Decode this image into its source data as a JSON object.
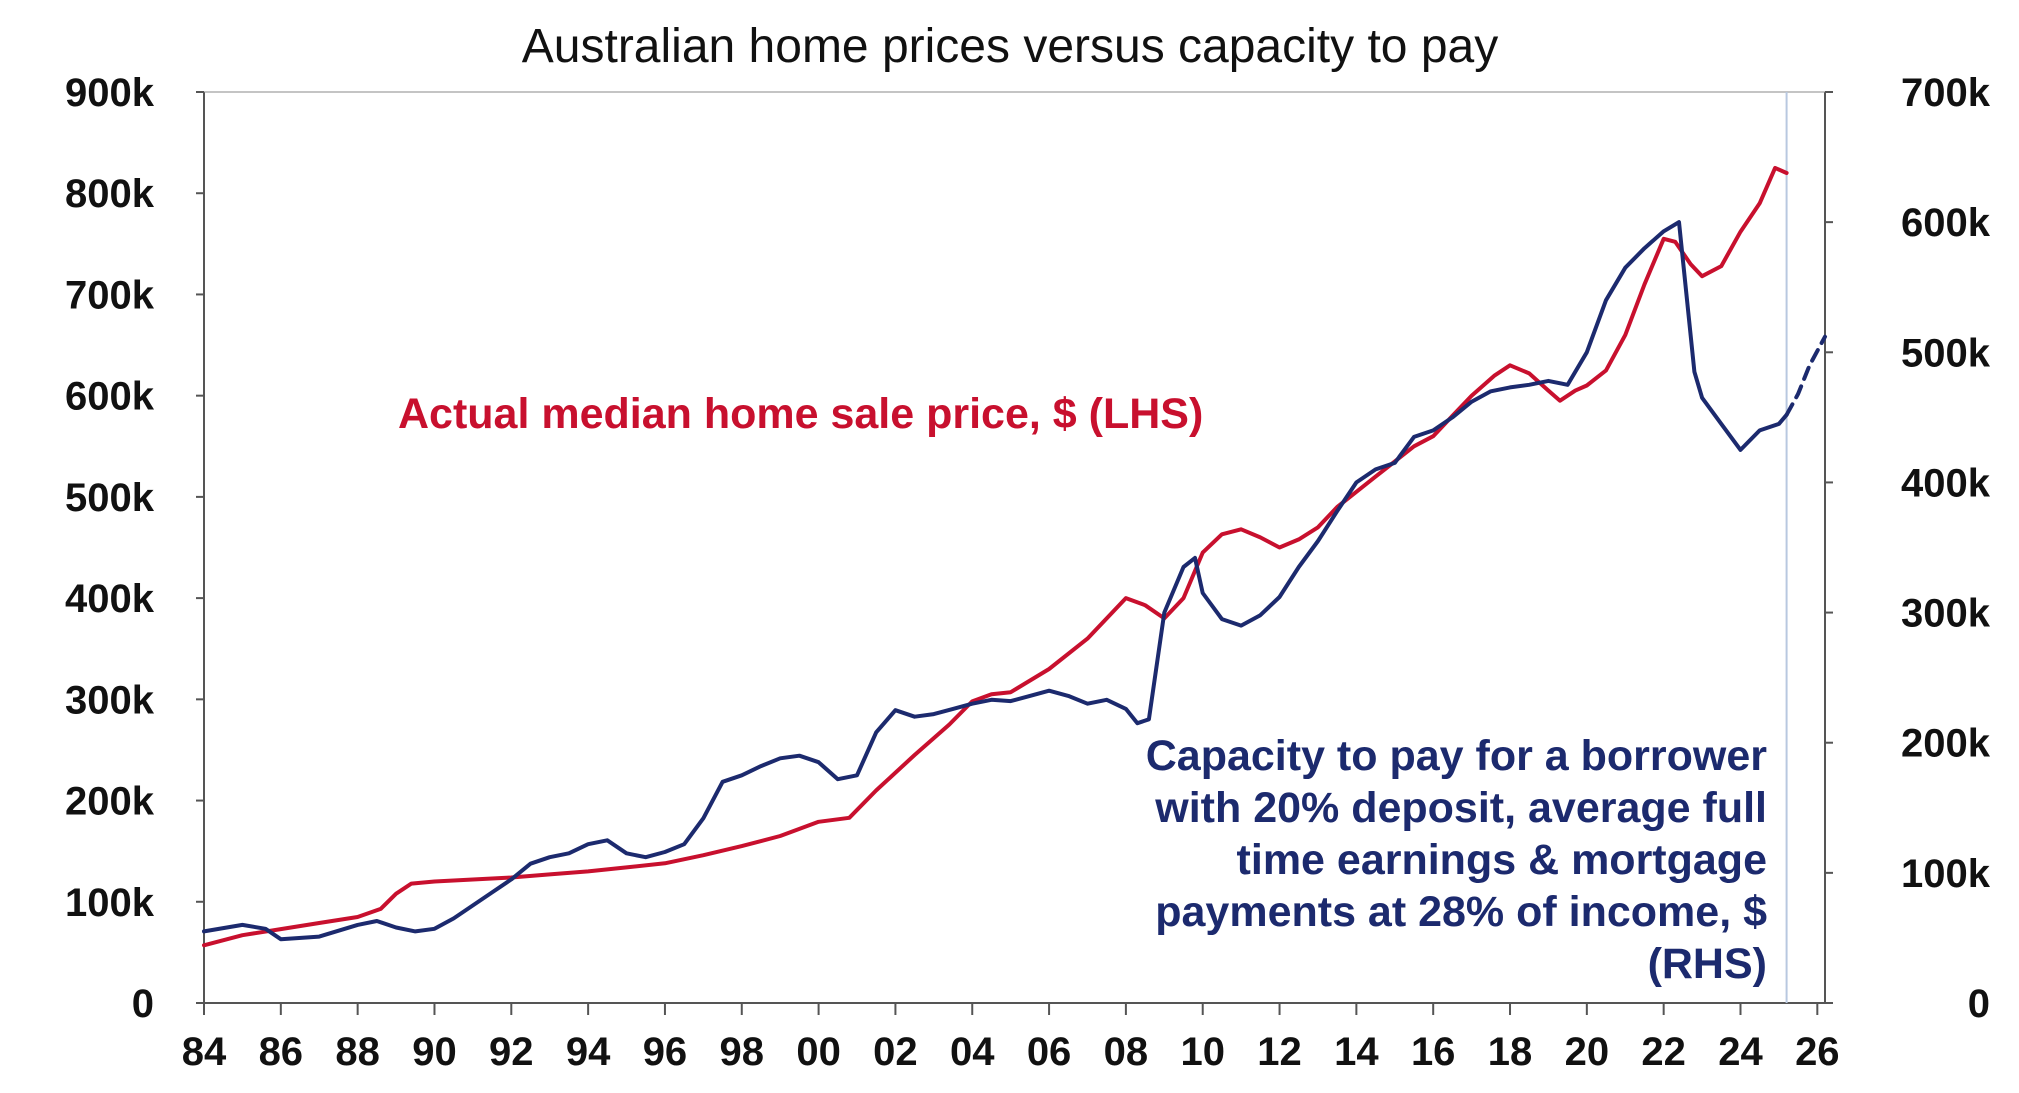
{
  "chart_data": {
    "type": "line",
    "title": "Australian home prices versus capacity to pay",
    "x_tick_labels": [
      "84",
      "86",
      "88",
      "90",
      "92",
      "94",
      "96",
      "98",
      "00",
      "02",
      "04",
      "06",
      "08",
      "10",
      "12",
      "14",
      "16",
      "18",
      "20",
      "22",
      "24",
      "26"
    ],
    "x_range": [
      1984,
      2026.2
    ],
    "y_left": {
      "range": [
        0,
        900000
      ],
      "tick_labels": [
        "0",
        "100k",
        "200k",
        "300k",
        "400k",
        "500k",
        "600k",
        "700k",
        "800k",
        "900k"
      ]
    },
    "y_right": {
      "range": [
        0,
        700000
      ],
      "tick_labels": [
        "0",
        "100k",
        "200k",
        "300k",
        "400k",
        "500k",
        "600k",
        "700k"
      ]
    },
    "grid": false,
    "vertical_marker_x": 2025.2,
    "annotations": {
      "red": "Actual median home sale price, $ (LHS)",
      "blue": [
        "Capacity to pay for a borrower",
        "with 20% deposit, average full",
        "time earnings & mortgage",
        "payments at 28% of income, $",
        "(RHS)"
      ]
    },
    "colors": {
      "red": "#c8102e",
      "blue": "#1c2a6e",
      "marker": "#b8c8e0"
    },
    "series": [
      {
        "axis": "left",
        "color": "#c8102e",
        "points": [
          [
            1984.0,
            57000
          ],
          [
            1985.0,
            67000
          ],
          [
            1986.0,
            73000
          ],
          [
            1987.0,
            79000
          ],
          [
            1988.0,
            85000
          ],
          [
            1988.6,
            93000
          ],
          [
            1989.0,
            108000
          ],
          [
            1989.4,
            118000
          ],
          [
            1990.0,
            120000
          ],
          [
            1991.0,
            122000
          ],
          [
            1992.0,
            124000
          ],
          [
            1993.0,
            127000
          ],
          [
            1994.0,
            130000
          ],
          [
            1995.0,
            134000
          ],
          [
            1996.0,
            138000
          ],
          [
            1997.0,
            146000
          ],
          [
            1998.0,
            155000
          ],
          [
            1999.0,
            165000
          ],
          [
            2000.0,
            179000
          ],
          [
            2000.8,
            183000
          ],
          [
            2001.5,
            210000
          ],
          [
            2002.5,
            245000
          ],
          [
            2003.4,
            275000
          ],
          [
            2004.0,
            298000
          ],
          [
            2004.5,
            305000
          ],
          [
            2005.0,
            307000
          ],
          [
            2006.0,
            330000
          ],
          [
            2007.0,
            360000
          ],
          [
            2007.5,
            380000
          ],
          [
            2008.0,
            400000
          ],
          [
            2008.5,
            393000
          ],
          [
            2009.0,
            380000
          ],
          [
            2009.5,
            400000
          ],
          [
            2010.0,
            445000
          ],
          [
            2010.5,
            463000
          ],
          [
            2011.0,
            468000
          ],
          [
            2011.5,
            460000
          ],
          [
            2012.0,
            450000
          ],
          [
            2012.5,
            458000
          ],
          [
            2013.0,
            470000
          ],
          [
            2013.5,
            490000
          ],
          [
            2014.0,
            505000
          ],
          [
            2014.5,
            520000
          ],
          [
            2015.0,
            535000
          ],
          [
            2015.5,
            550000
          ],
          [
            2016.0,
            560000
          ],
          [
            2016.5,
            580000
          ],
          [
            2017.0,
            600000
          ],
          [
            2017.6,
            620000
          ],
          [
            2018.0,
            630000
          ],
          [
            2018.5,
            622000
          ],
          [
            2019.0,
            605000
          ],
          [
            2019.3,
            595000
          ],
          [
            2019.7,
            605000
          ],
          [
            2020.0,
            610000
          ],
          [
            2020.5,
            625000
          ],
          [
            2021.0,
            660000
          ],
          [
            2021.5,
            710000
          ],
          [
            2022.0,
            755000
          ],
          [
            2022.3,
            752000
          ],
          [
            2022.7,
            730000
          ],
          [
            2023.0,
            718000
          ],
          [
            2023.5,
            728000
          ],
          [
            2024.0,
            762000
          ],
          [
            2024.5,
            790000
          ],
          [
            2024.9,
            825000
          ],
          [
            2025.2,
            820000
          ]
        ]
      },
      {
        "axis": "right",
        "color": "#1c2a6e",
        "points": [
          [
            1984.0,
            55000
          ],
          [
            1985.0,
            60000
          ],
          [
            1985.6,
            57000
          ],
          [
            1986.0,
            49000
          ],
          [
            1987.0,
            51000
          ],
          [
            1988.0,
            60000
          ],
          [
            1988.5,
            63000
          ],
          [
            1989.0,
            58000
          ],
          [
            1989.5,
            55000
          ],
          [
            1990.0,
            57000
          ],
          [
            1990.5,
            65000
          ],
          [
            1991.0,
            75000
          ],
          [
            1991.5,
            85000
          ],
          [
            1992.0,
            95000
          ],
          [
            1992.5,
            107000
          ],
          [
            1993.0,
            112000
          ],
          [
            1993.5,
            115000
          ],
          [
            1994.0,
            122000
          ],
          [
            1994.5,
            125000
          ],
          [
            1995.0,
            115000
          ],
          [
            1995.5,
            112000
          ],
          [
            1996.0,
            116000
          ],
          [
            1996.5,
            122000
          ],
          [
            1997.0,
            142000
          ],
          [
            1997.5,
            170000
          ],
          [
            1998.0,
            175000
          ],
          [
            1998.5,
            182000
          ],
          [
            1999.0,
            188000
          ],
          [
            1999.5,
            190000
          ],
          [
            2000.0,
            185000
          ],
          [
            2000.5,
            172000
          ],
          [
            2001.0,
            175000
          ],
          [
            2001.5,
            208000
          ],
          [
            2002.0,
            225000
          ],
          [
            2002.5,
            220000
          ],
          [
            2003.0,
            222000
          ],
          [
            2003.5,
            226000
          ],
          [
            2004.0,
            230000
          ],
          [
            2004.5,
            233000
          ],
          [
            2005.0,
            232000
          ],
          [
            2005.5,
            236000
          ],
          [
            2006.0,
            240000
          ],
          [
            2006.5,
            236000
          ],
          [
            2007.0,
            230000
          ],
          [
            2007.5,
            233000
          ],
          [
            2008.0,
            226000
          ],
          [
            2008.3,
            215000
          ],
          [
            2008.6,
            218000
          ],
          [
            2009.0,
            300000
          ],
          [
            2009.5,
            335000
          ],
          [
            2009.8,
            342000
          ],
          [
            2010.0,
            315000
          ],
          [
            2010.5,
            295000
          ],
          [
            2011.0,
            290000
          ],
          [
            2011.5,
            298000
          ],
          [
            2012.0,
            312000
          ],
          [
            2012.5,
            335000
          ],
          [
            2013.0,
            355000
          ],
          [
            2013.5,
            378000
          ],
          [
            2014.0,
            400000
          ],
          [
            2014.5,
            410000
          ],
          [
            2015.0,
            415000
          ],
          [
            2015.5,
            435000
          ],
          [
            2016.0,
            440000
          ],
          [
            2016.5,
            450000
          ],
          [
            2017.0,
            462000
          ],
          [
            2017.5,
            470000
          ],
          [
            2018.0,
            473000
          ],
          [
            2018.5,
            475000
          ],
          [
            2019.0,
            478000
          ],
          [
            2019.5,
            475000
          ],
          [
            2020.0,
            500000
          ],
          [
            2020.5,
            540000
          ],
          [
            2021.0,
            565000
          ],
          [
            2021.5,
            580000
          ],
          [
            2022.0,
            593000
          ],
          [
            2022.4,
            600000
          ],
          [
            2022.8,
            485000
          ],
          [
            2023.0,
            465000
          ],
          [
            2023.5,
            445000
          ],
          [
            2024.0,
            425000
          ],
          [
            2024.5,
            440000
          ],
          [
            2025.0,
            445000
          ],
          [
            2025.2,
            452000
          ]
        ]
      },
      {
        "axis": "right",
        "color": "#1c2a6e",
        "dashed": true,
        "points": [
          [
            2025.2,
            452000
          ],
          [
            2025.5,
            468000
          ],
          [
            2025.8,
            490000
          ],
          [
            2026.2,
            512000
          ]
        ]
      }
    ]
  }
}
